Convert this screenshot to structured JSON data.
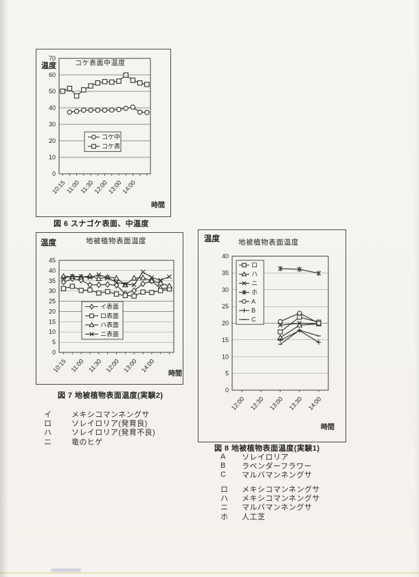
{
  "page": {
    "colors": {
      "paper": "#f5f4f0",
      "ink": "#2f2f2f",
      "grid": "#8b938b",
      "border": "#3e3e3e"
    },
    "captions": {
      "fig6": "図 6 スナゴケ表面、中温度",
      "fig7": "図 7 地被植物表面温度(実験2)",
      "fig8": "図 8 地被植物表面温度(実験1)"
    },
    "fig7_list": [
      {
        "key": "イ",
        "label": "メキシコマンネングサ"
      },
      {
        "key": "ロ",
        "label": "ソレイロリア(発育良)"
      },
      {
        "key": "ハ",
        "label": "ソレイロリア(発育不良)"
      },
      {
        "key": "ニ",
        "label": "竜のヒゲ"
      }
    ],
    "fig8_list_top": [
      {
        "key": "A",
        "label": "ソレイロリア"
      },
      {
        "key": "B",
        "label": "ラベンダーフラワー"
      },
      {
        "key": "C",
        "label": "マルバマンネングサ"
      }
    ],
    "fig8_list_bottom": [
      {
        "key": "ロ",
        "label": "メキシコマンネングサ"
      },
      {
        "key": "ハ",
        "label": "メキシコマンネングサ"
      },
      {
        "key": "ニ",
        "label": "マルバマンネングサ"
      },
      {
        "key": "ホ",
        "label": "人工芝"
      }
    ]
  },
  "chart_data": [
    {
      "id": "fig6",
      "type": "line",
      "title": "コケ表面中温度",
      "ylabel": "温度",
      "xlabel": "時間",
      "ylim": [
        0,
        70
      ],
      "ytick_step": 10,
      "yticks": [
        0,
        10,
        20,
        30,
        40,
        50,
        60,
        70
      ],
      "grid": true,
      "legend_position": "inside-center",
      "categories": [
        "10:15",
        "",
        "11:00",
        "",
        "11:30",
        "",
        "12:00",
        "",
        "13:00",
        "",
        "14:00",
        "",
        ""
      ],
      "series": [
        {
          "name": "コケ中",
          "marker": "circle",
          "values": [
            null,
            37.4,
            37.9,
            38.6,
            38.6,
            38.6,
            38.6,
            38.7,
            39.0,
            39.7,
            40.4,
            37.4,
            37.2
          ]
        },
        {
          "name": "コケ表",
          "marker": "square",
          "values": [
            50.1,
            51.8,
            47.2,
            50.9,
            53.3,
            55.1,
            55.9,
            55.6,
            56.2,
            59.9,
            56.7,
            55.1,
            54.2
          ]
        }
      ]
    },
    {
      "id": "fig7",
      "type": "line",
      "title": "地被植物表面温度",
      "ylabel": "温度",
      "xlabel": "時間",
      "ylim": [
        0,
        45
      ],
      "ytick_step": 5,
      "yticks": [
        0,
        5,
        10,
        15,
        20,
        25,
        30,
        35,
        40,
        45
      ],
      "grid": true,
      "legend_position": "inside-bottom-left",
      "categories": [
        "10:15",
        "",
        "11:00",
        "",
        "11:30",
        "",
        "12:00",
        "",
        "13:00",
        "",
        "14:00",
        "",
        ""
      ],
      "series": [
        {
          "name": "イ表面",
          "marker": "diamond",
          "values": [
            34.3,
            36.0,
            35.3,
            33.0,
            33.0,
            33.2,
            32.8,
            28.7,
            30.2,
            33.5,
            35.0,
            31.2,
            31.5
          ]
        },
        {
          "name": "ロ表面",
          "marker": "square",
          "values": [
            31.2,
            32.3,
            30.3,
            30.5,
            29.0,
            29.7,
            28.5,
            27.8,
            27.5,
            29.5,
            29.3,
            30.2,
            31.0
          ]
        },
        {
          "name": "ハ表面",
          "marker": "triangle",
          "values": [
            37.2,
            37.0,
            36.8,
            37.3,
            36.0,
            36.8,
            36.3,
            33.0,
            36.3,
            36.5,
            35.0,
            33.8,
            32.5
          ]
        },
        {
          "name": "ニ表面",
          "marker": "x",
          "values": [
            36.3,
            37.2,
            37.0,
            36.6,
            38.0,
            36.5,
            34.2,
            33.3,
            33.0,
            39.3,
            36.6,
            35.3,
            37.0
          ]
        }
      ]
    },
    {
      "id": "fig8",
      "type": "line",
      "title": "地被植物表面温度",
      "ylabel": "温度",
      "xlabel": "時間",
      "ylim": [
        0,
        40
      ],
      "ytick_step": 5,
      "yticks": [
        0,
        5,
        10,
        15,
        20,
        25,
        30,
        35,
        40
      ],
      "grid": true,
      "legend_position": "inside-top-left",
      "categories": [
        "12:00",
        "12:30",
        "13:00",
        "13:30",
        "14:00"
      ],
      "series": [
        {
          "name": "ロ",
          "marker": "square",
          "values": [
            null,
            null,
            17.4,
            21.8,
            20.3
          ]
        },
        {
          "name": "ハ",
          "marker": "triangle",
          "values": [
            null,
            null,
            15.7,
            19.4,
            19.8
          ]
        },
        {
          "name": "ニ",
          "marker": "x",
          "values": [
            null,
            null,
            19.4,
            20.0,
            19.8
          ]
        },
        {
          "name": "ホ",
          "marker": "star",
          "values": [
            null,
            null,
            36.3,
            36.1,
            34.9
          ]
        },
        {
          "name": "A",
          "marker": "circle",
          "values": [
            null,
            null,
            20.5,
            23.0,
            20.0
          ]
        },
        {
          "name": "B",
          "marker": "plus",
          "values": [
            null,
            null,
            14.9,
            17.8,
            14.3
          ]
        },
        {
          "name": "C",
          "marker": "dash",
          "values": [
            null,
            null,
            13.7,
            17.9,
            16.2
          ]
        }
      ]
    }
  ]
}
